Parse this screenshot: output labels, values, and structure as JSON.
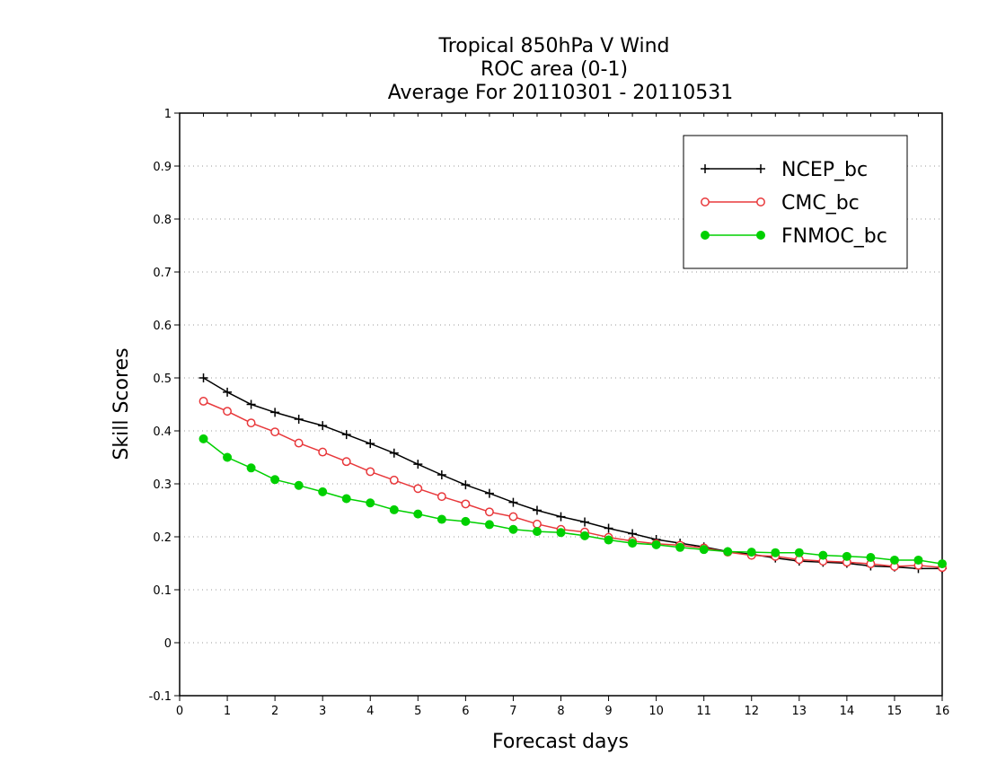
{
  "chart_data": {
    "type": "line",
    "title": [
      "Tropical 850hPa V Wind",
      "ROC area (0-1)",
      "Average For 20110301 - 20110531"
    ],
    "xlabel": "Forecast days",
    "ylabel": "Skill Scores",
    "xlim": [
      0,
      16
    ],
    "ylim": [
      -0.1,
      1
    ],
    "xticks": [
      "0",
      "1",
      "2",
      "3",
      "4",
      "5",
      "6",
      "7",
      "8",
      "9",
      "10",
      "11",
      "12",
      "13",
      "14",
      "15",
      "16"
    ],
    "yticks": [
      "-0.1",
      "0",
      "0.1",
      "0.2",
      "0.3",
      "0.4",
      "0.5",
      "0.6",
      "0.7",
      "0.8",
      "0.9",
      "1"
    ],
    "grid": "horizontal dotted",
    "legend_position": "top-right",
    "x": [
      0.5,
      1,
      1.5,
      2,
      2.5,
      3,
      3.5,
      4,
      4.5,
      5,
      5.5,
      6,
      6.5,
      7,
      7.5,
      8,
      8.5,
      9,
      9.5,
      10,
      10.5,
      11,
      11.5,
      12,
      12.5,
      13,
      13.5,
      14,
      14.5,
      15,
      15.5,
      16
    ],
    "series": [
      {
        "name": "NCEP_bc",
        "color": "#000000",
        "marker": "plus",
        "values": [
          0.5,
          0.473,
          0.45,
          0.435,
          0.422,
          0.41,
          0.393,
          0.376,
          0.358,
          0.337,
          0.317,
          0.298,
          0.282,
          0.265,
          0.25,
          0.238,
          0.228,
          0.216,
          0.206,
          0.195,
          0.188,
          0.181,
          0.172,
          0.167,
          0.16,
          0.154,
          0.152,
          0.15,
          0.145,
          0.143,
          0.14,
          0.14
        ]
      },
      {
        "name": "CMC_bc",
        "color": "#e8383b",
        "marker": "open-circle",
        "values": [
          0.456,
          0.437,
          0.415,
          0.398,
          0.377,
          0.36,
          0.342,
          0.323,
          0.307,
          0.291,
          0.276,
          0.262,
          0.247,
          0.238,
          0.224,
          0.214,
          0.209,
          0.199,
          0.192,
          0.187,
          0.184,
          0.179,
          0.171,
          0.165,
          0.163,
          0.157,
          0.154,
          0.152,
          0.149,
          0.144,
          0.146,
          0.142
        ]
      },
      {
        "name": "FNMOC_bc",
        "color": "#00d000",
        "marker": "filled-circle",
        "values": [
          0.385,
          0.35,
          0.33,
          0.308,
          0.297,
          0.285,
          0.272,
          0.264,
          0.251,
          0.243,
          0.233,
          0.229,
          0.223,
          0.214,
          0.21,
          0.208,
          0.202,
          0.194,
          0.188,
          0.185,
          0.18,
          0.176,
          0.172,
          0.171,
          0.17,
          0.17,
          0.165,
          0.163,
          0.161,
          0.156,
          0.156,
          0.149
        ]
      }
    ]
  }
}
